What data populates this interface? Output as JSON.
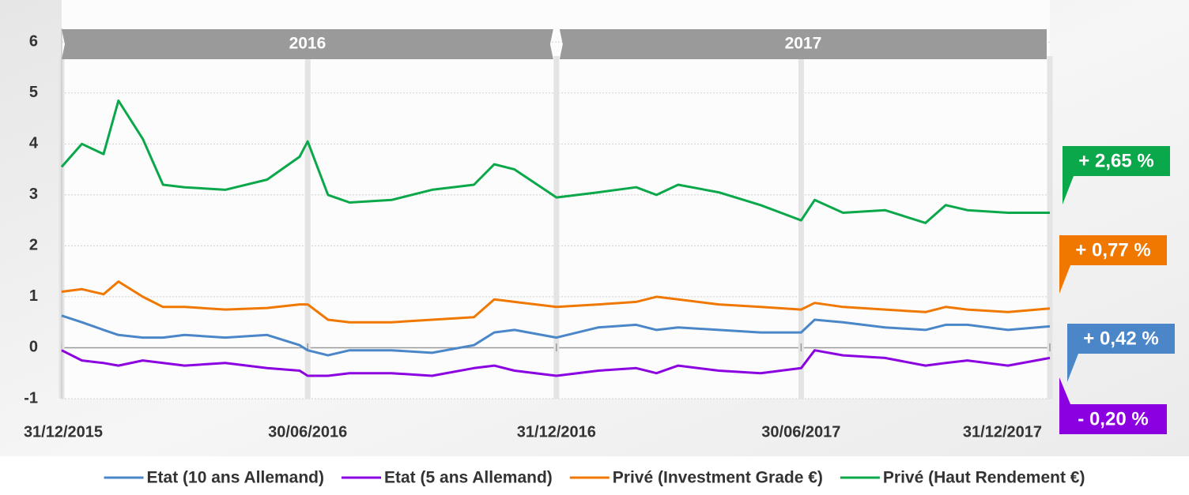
{
  "chart_data": {
    "type": "line",
    "x": [
      "2015-12-31",
      "2016-01-15",
      "2016-01-31",
      "2016-02-11",
      "2016-02-29",
      "2016-03-15",
      "2016-03-31",
      "2016-04-30",
      "2016-05-31",
      "2016-06-24",
      "2016-06-30",
      "2016-07-15",
      "2016-07-31",
      "2016-08-31",
      "2016-09-30",
      "2016-10-31",
      "2016-11-15",
      "2016-11-30",
      "2016-12-31",
      "2017-01-31",
      "2017-02-28",
      "2017-03-15",
      "2017-03-31",
      "2017-04-30",
      "2017-05-31",
      "2017-06-30",
      "2017-07-10",
      "2017-07-31",
      "2017-08-31",
      "2017-09-30",
      "2017-10-15",
      "2017-10-31",
      "2017-11-30",
      "2017-12-31"
    ],
    "series": [
      {
        "name": "Etat (10 ans Allemand)",
        "color": "#4a86c8",
        "values": [
          0.63,
          0.5,
          0.35,
          0.25,
          0.2,
          0.2,
          0.25,
          0.2,
          0.25,
          0.05,
          -0.05,
          -0.15,
          -0.05,
          -0.05,
          -0.1,
          0.05,
          0.3,
          0.35,
          0.2,
          0.4,
          0.45,
          0.35,
          0.4,
          0.35,
          0.3,
          0.3,
          0.55,
          0.5,
          0.4,
          0.35,
          0.45,
          0.45,
          0.35,
          0.42
        ],
        "end_value": 0.42,
        "end_label": "+ 0,42 %"
      },
      {
        "name": "Etat (5 ans Allemand)",
        "color": "#8b00e0",
        "values": [
          -0.05,
          -0.25,
          -0.3,
          -0.35,
          -0.25,
          -0.3,
          -0.35,
          -0.3,
          -0.4,
          -0.45,
          -0.55,
          -0.55,
          -0.5,
          -0.5,
          -0.55,
          -0.4,
          -0.35,
          -0.45,
          -0.55,
          -0.45,
          -0.4,
          -0.5,
          -0.35,
          -0.45,
          -0.5,
          -0.4,
          -0.05,
          -0.15,
          -0.2,
          -0.35,
          -0.3,
          -0.25,
          -0.35,
          -0.2
        ],
        "end_value": -0.2,
        "end_label": "- 0,20 %"
      },
      {
        "name": "Privé (Investment Grade €)",
        "color": "#f07800",
        "values": [
          1.1,
          1.15,
          1.05,
          1.3,
          1.0,
          0.8,
          0.8,
          0.75,
          0.78,
          0.85,
          0.85,
          0.55,
          0.5,
          0.5,
          0.55,
          0.6,
          0.95,
          0.9,
          0.8,
          0.85,
          0.9,
          1.0,
          0.95,
          0.85,
          0.8,
          0.75,
          0.88,
          0.8,
          0.75,
          0.7,
          0.8,
          0.75,
          0.7,
          0.77
        ],
        "end_value": 0.77,
        "end_label": "+ 0,77 %"
      },
      {
        "name": "Privé (Haut Rendement €)",
        "color": "#0aa84a",
        "values": [
          3.55,
          4.0,
          3.8,
          4.85,
          4.1,
          3.2,
          3.15,
          3.1,
          3.3,
          3.75,
          4.05,
          3.0,
          2.85,
          2.9,
          3.1,
          3.2,
          3.6,
          3.5,
          2.95,
          3.05,
          3.15,
          3.0,
          3.2,
          3.05,
          2.8,
          2.5,
          2.9,
          2.65,
          2.7,
          2.45,
          2.8,
          2.7,
          2.65,
          2.65
        ],
        "end_value": 2.65,
        "end_label": "+ 2,65 %"
      }
    ],
    "bands": [
      {
        "label": "2016",
        "from": "2015-12-31",
        "to": "2016-12-31"
      },
      {
        "label": "2017",
        "from": "2016-12-31",
        "to": "2017-12-31"
      }
    ],
    "xlim": [
      "2015-12-31",
      "2017-12-31"
    ],
    "xticks": [
      {
        "value": "2015-12-31",
        "label": "31/12/2015"
      },
      {
        "value": "2016-06-30",
        "label": "30/06/2016"
      },
      {
        "value": "2016-12-31",
        "label": "31/12/2016"
      },
      {
        "value": "2017-06-30",
        "label": "30/06/2017"
      },
      {
        "value": "2017-12-31",
        "label": "31/12/2017"
      }
    ],
    "ylim": [
      -1,
      6.5
    ],
    "yticks": [
      -1,
      0,
      1,
      2,
      3,
      4,
      5,
      6
    ],
    "grid": true,
    "legend": "bottom"
  }
}
